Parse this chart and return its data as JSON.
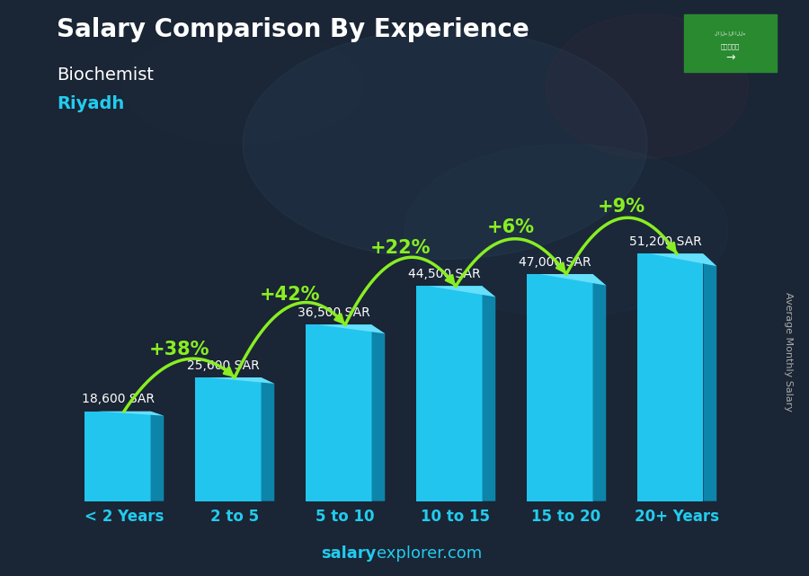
{
  "title": "Salary Comparison By Experience",
  "subtitle1": "Biochemist",
  "subtitle2": "Riyadh",
  "categories": [
    "< 2 Years",
    "2 to 5",
    "5 to 10",
    "10 to 15",
    "15 to 20",
    "20+ Years"
  ],
  "values": [
    18600,
    25600,
    36500,
    44500,
    47000,
    51200
  ],
  "salaries": [
    "18,600 SAR",
    "25,600 SAR",
    "36,500 SAR",
    "44,500 SAR",
    "47,000 SAR",
    "51,200 SAR"
  ],
  "pct_changes": [
    null,
    "+38%",
    "+42%",
    "+22%",
    "+6%",
    "+9%"
  ],
  "bar_color": "#22c5ee",
  "bar_side_color": "#0d85aa",
  "bar_top_color": "#66dffa",
  "bg_color": "#1a2535",
  "title_color": "#ffffff",
  "subtitle1_color": "#ffffff",
  "subtitle2_color": "#22ccee",
  "salary_color": "#ffffff",
  "pct_color": "#88ee22",
  "xtick_color": "#22ccee",
  "watermark_color": "#22ccee",
  "ylabel_text": "Average Monthly Salary",
  "flag_color": "#2a8a3a",
  "ylim_max": 62000,
  "bar_width": 0.6,
  "bar_depth": 0.12,
  "figsize": [
    9.0,
    6.41
  ],
  "dpi": 100
}
